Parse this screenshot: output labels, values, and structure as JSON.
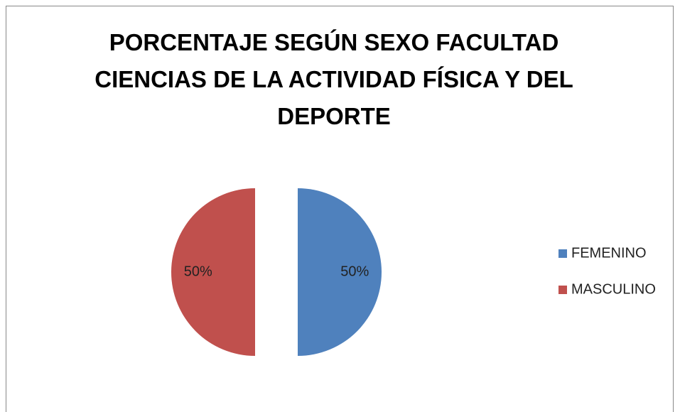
{
  "chart_data": {
    "type": "pie",
    "title": "PORCENTAJE SEGÚN SEXO FACULTAD CIENCIAS DE LA ACTIVIDAD FÍSICA Y DEL DEPORTE",
    "categories": [
      "FEMENINO",
      "MASCULINO"
    ],
    "values": [
      50,
      50
    ],
    "value_labels": [
      "50%",
      "50%"
    ],
    "colors": [
      "#4f81bd",
      "#c0504d"
    ],
    "exploded": true,
    "legend": "right"
  }
}
